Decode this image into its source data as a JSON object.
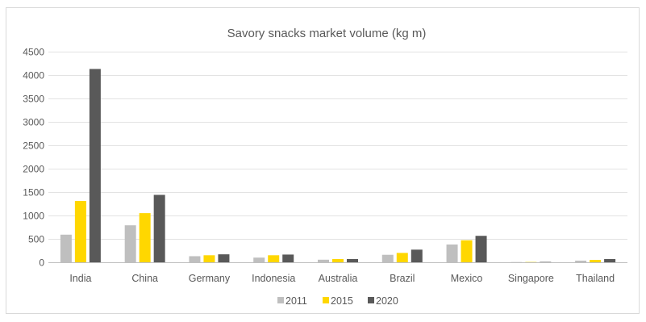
{
  "chart_data": {
    "type": "bar",
    "title": "Savory snacks market volume (kg m)",
    "xlabel": "",
    "ylabel": "",
    "ylim": [
      0,
      4500
    ],
    "yticks": [
      0,
      500,
      1000,
      1500,
      2000,
      2500,
      3000,
      3500,
      4000,
      4500
    ],
    "grid": true,
    "legend_position": "bottom",
    "categories": [
      "India",
      "China",
      "Germany",
      "Indonesia",
      "Australia",
      "Brazil",
      "Mexico",
      "Singapore",
      "Thailand"
    ],
    "series": [
      {
        "name": "2011",
        "color": "#bfbfbf",
        "values": [
          590,
          790,
          130,
          100,
          55,
          160,
          380,
          5,
          35
        ]
      },
      {
        "name": "2015",
        "color": "#ffd700",
        "values": [
          1310,
          1050,
          150,
          150,
          70,
          200,
          470,
          6,
          50
        ]
      },
      {
        "name": "2020",
        "color": "#595959",
        "values": [
          4130,
          1440,
          170,
          165,
          70,
          270,
          565,
          8,
          70
        ]
      }
    ]
  }
}
